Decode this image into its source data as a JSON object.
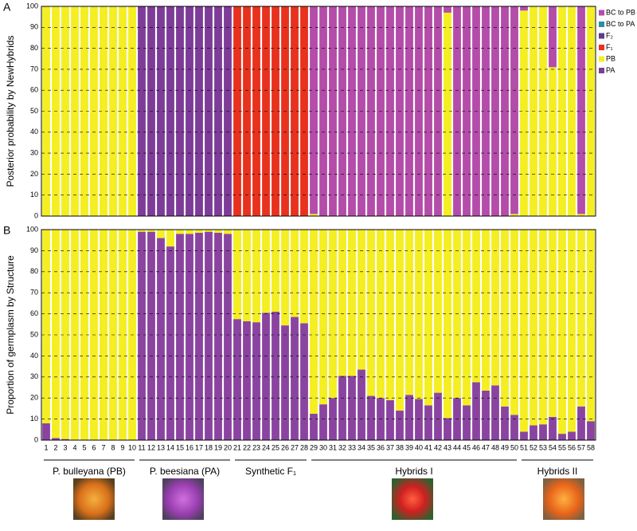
{
  "chart_data": [
    {
      "type": "bar",
      "stacked": true,
      "panel_label": "A",
      "ylabel": "Posterior probability by NewHybrids",
      "ylim": [
        0,
        100
      ],
      "yticks": [
        0,
        10,
        20,
        30,
        40,
        50,
        60,
        70,
        80,
        90,
        100
      ],
      "grid": true,
      "legend": "right",
      "series": [
        {
          "name": "BC to PB",
          "color": "#b44ca9",
          "values": [
            0,
            0,
            0,
            0,
            0,
            0,
            0,
            0,
            0,
            0,
            0,
            0,
            0,
            0,
            0,
            0,
            0,
            0,
            0,
            0,
            0,
            0,
            0,
            0,
            0,
            0,
            0,
            0,
            99,
            100,
            100,
            100,
            100,
            100,
            100,
            100,
            100,
            100,
            100,
            100,
            100,
            100,
            3,
            100,
            100,
            100,
            100,
            100,
            100,
            99,
            2,
            0,
            0,
            29,
            0,
            0,
            99,
            0
          ]
        },
        {
          "name": "BC to PA",
          "color": "#2b8ea8",
          "values": [
            0,
            0,
            0,
            0,
            0,
            0,
            0,
            0,
            0,
            0,
            0,
            0,
            0,
            0,
            0,
            0,
            0,
            0,
            0,
            0,
            0,
            0,
            0,
            0,
            0,
            0,
            0,
            0,
            0,
            0,
            0,
            0,
            0,
            0,
            0,
            0,
            0,
            0,
            0,
            0,
            0,
            0,
            0,
            0,
            0,
            0,
            0,
            0,
            0,
            0,
            0,
            0,
            0,
            0,
            0,
            0,
            0,
            0
          ]
        },
        {
          "name": "F₂",
          "color": "#5c3b8f",
          "values": [
            0,
            0,
            0,
            0,
            0,
            0,
            0,
            0,
            0,
            0,
            0,
            0,
            0,
            0,
            0,
            0,
            0,
            0,
            0,
            0,
            0,
            0,
            0,
            0,
            0,
            0,
            0,
            0,
            0,
            0,
            0,
            0,
            0,
            0,
            0,
            0,
            0,
            0,
            0,
            0,
            0,
            0,
            0,
            0,
            0,
            0,
            0,
            0,
            0,
            0,
            0,
            0,
            0,
            0,
            0,
            0,
            0,
            0
          ]
        },
        {
          "name": "F₁",
          "color": "#e8321e",
          "values": [
            0,
            0,
            0,
            0,
            0,
            0,
            0,
            0,
            0,
            0,
            0,
            0,
            0,
            0,
            0,
            0,
            0,
            0,
            0,
            0,
            100,
            100,
            100,
            100,
            100,
            100,
            100,
            100,
            0,
            0,
            0,
            0,
            0,
            0,
            0,
            0,
            0,
            0,
            0,
            0,
            0,
            0,
            0,
            0,
            0,
            0,
            0,
            0,
            0,
            0,
            0,
            0,
            0,
            0,
            0,
            0,
            0,
            0
          ]
        },
        {
          "name": "PB",
          "color": "#f4ee22",
          "values": [
            100,
            100,
            100,
            100,
            100,
            100,
            100,
            100,
            100,
            100,
            0,
            0,
            0,
            0,
            0,
            0,
            0,
            0,
            0,
            0,
            0,
            0,
            0,
            0,
            0,
            0,
            0,
            0,
            1,
            0,
            0,
            0,
            0,
            0,
            0,
            0,
            0,
            0,
            0,
            0,
            0,
            0,
            97,
            0,
            0,
            0,
            0,
            0,
            0,
            1,
            98,
            100,
            100,
            71,
            100,
            100,
            1,
            100
          ]
        },
        {
          "name": "PA",
          "color": "#7d3c98",
          "values": [
            0,
            0,
            0,
            0,
            0,
            0,
            0,
            0,
            0,
            0,
            100,
            100,
            100,
            100,
            100,
            100,
            100,
            100,
            100,
            100,
            0,
            0,
            0,
            0,
            0,
            0,
            0,
            0,
            0,
            0,
            0,
            0,
            0,
            0,
            0,
            0,
            0,
            0,
            0,
            0,
            0,
            0,
            0,
            0,
            0,
            0,
            0,
            0,
            0,
            0,
            0,
            0,
            0,
            0,
            0,
            0,
            0,
            0
          ]
        }
      ]
    },
    {
      "type": "bar",
      "stacked": true,
      "panel_label": "B",
      "ylabel": "Proportion of germplasm by Structure",
      "ylim": [
        0,
        100
      ],
      "yticks": [
        0,
        10,
        20,
        30,
        40,
        50,
        60,
        70,
        80,
        90,
        100
      ],
      "grid": true,
      "categories": [
        "1",
        "2",
        "3",
        "4",
        "5",
        "6",
        "7",
        "8",
        "9",
        "10",
        "11",
        "12",
        "13",
        "14",
        "15",
        "16",
        "17",
        "18",
        "19",
        "20",
        "21",
        "22",
        "23",
        "24",
        "25",
        "26",
        "27",
        "28",
        "29",
        "30",
        "31",
        "32",
        "33",
        "34",
        "35",
        "36",
        "37",
        "38",
        "39",
        "40",
        "41",
        "42",
        "43",
        "44",
        "45",
        "46",
        "47",
        "48",
        "49",
        "50",
        "51",
        "52",
        "53",
        "54",
        "55",
        "56",
        "57",
        "58"
      ],
      "groups": [
        "P. bulleyana (PB)",
        "P. beesiana (PA)",
        "Synthetic F₁",
        "Hybrids I",
        "Hybrids II"
      ],
      "series": [
        {
          "color": "#f4ee22",
          "values": [
            92,
            99,
            99.5,
            100,
            100,
            100,
            100,
            100,
            100,
            100,
            1,
            1,
            4,
            8,
            2,
            2,
            1.5,
            1,
            1.5,
            2,
            42.5,
            43.5,
            44,
            39.5,
            39,
            45.5,
            41.5,
            44.5,
            87.5,
            83,
            80,
            69.5,
            69.5,
            66.5,
            79,
            80,
            81,
            86,
            78.5,
            80.5,
            83.5,
            77.5,
            89.5,
            80,
            83.5,
            72.5,
            76.5,
            74,
            84,
            88,
            96,
            93,
            92.5,
            89,
            97,
            96,
            84,
            91
          ]
        },
        {
          "color": "#8a44a0",
          "values": [
            8,
            1,
            0.5,
            0,
            0,
            0,
            0,
            0,
            0,
            0,
            99,
            99,
            96,
            92,
            98,
            98,
            98.5,
            99,
            98.5,
            98,
            57.5,
            56.5,
            56,
            60.5,
            61,
            54.5,
            58.5,
            55.5,
            12.5,
            17,
            20,
            30.5,
            30.5,
            33.5,
            21,
            20,
            19,
            14,
            21.5,
            19.5,
            16.5,
            22.5,
            10.5,
            20,
            16.5,
            27.5,
            23.5,
            26,
            16,
            12,
            4,
            7,
            7.5,
            11,
            3,
            4,
            16,
            9
          ]
        }
      ]
    }
  ]
}
